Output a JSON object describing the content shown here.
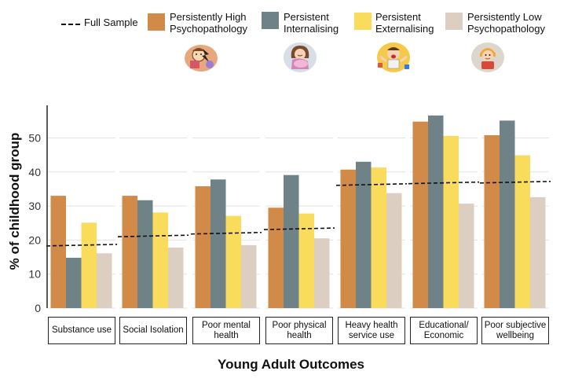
{
  "chart_data": {
    "type": "bar",
    "xlabel": "Young Adult Outcomes",
    "ylabel": "% of childhood group",
    "ylim": [
      0,
      58
    ],
    "yticks": [
      0,
      10,
      20,
      30,
      40,
      50
    ],
    "grid": "horizontal",
    "legend_position": "top",
    "categories": [
      "Substance use",
      "Social Isolation",
      "Poor mental health",
      "Poor physical health",
      "Heavy health service use",
      "Educational/ Economic",
      "Poor subjective wellbeing"
    ],
    "series": [
      {
        "name": "Persistently High Psychopathology",
        "color": "#D18A48",
        "values": [
          33,
          33,
          35.8,
          29.5,
          40.7,
          54.8,
          50.8
        ]
      },
      {
        "name": "Persistent Internalising",
        "color": "#6E8288",
        "values": [
          14.8,
          31.7,
          37.8,
          39.1,
          43,
          56.6,
          55.1
        ]
      },
      {
        "name": "Persistent Externalising",
        "color": "#F9DC5C",
        "values": [
          25.1,
          28.1,
          27.1,
          27.8,
          41.3,
          50.6,
          44.9
        ]
      },
      {
        "name": "Persistently Low Psychopathology",
        "color": "#DCCFC2",
        "values": [
          16.1,
          17.8,
          18.5,
          20.5,
          33.8,
          30.7,
          32.6
        ]
      }
    ],
    "full_sample": {
      "name": "Full Sample",
      "values": [
        18.5,
        21.2,
        22,
        23.3,
        36.3,
        36.8,
        37
      ]
    }
  },
  "legend_icons": [
    "angry-child-icon",
    "sad-child-icon",
    "shouting-child-icon",
    "calm-child-icon"
  ]
}
